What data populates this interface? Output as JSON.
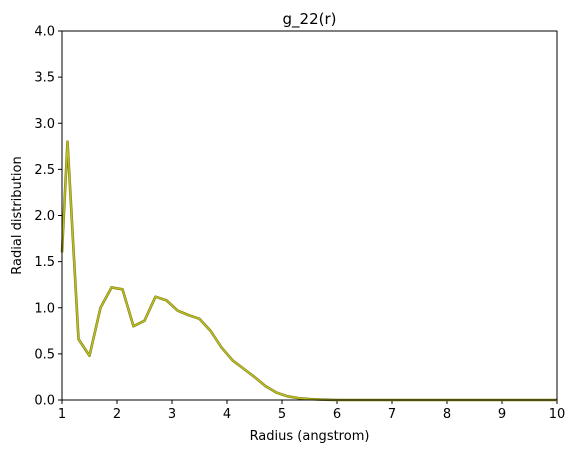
{
  "chart_data": {
    "type": "line",
    "title": "g_22(r)",
    "xlabel": "Radius (angstrom)",
    "ylabel": "Radial distribution",
    "xlim": [
      1,
      10
    ],
    "ylim": [
      0,
      4
    ],
    "xticks": [
      "1",
      "2",
      "3",
      "4",
      "5",
      "6",
      "7",
      "8",
      "9",
      "10"
    ],
    "yticks": [
      "0.0",
      "0.5",
      "1.0",
      "1.5",
      "2.0",
      "2.5",
      "3.0",
      "3.5",
      "4.0"
    ],
    "grid": false,
    "series": [
      {
        "color": "#bcbd22",
        "x": [
          1.0,
          1.1,
          1.3,
          1.5,
          1.7,
          1.9,
          2.1,
          2.3,
          2.5,
          2.7,
          2.9,
          3.1,
          3.3,
          3.5,
          3.7,
          3.9,
          4.1,
          4.3,
          4.5,
          4.7,
          4.9,
          5.1,
          5.3,
          5.5,
          5.7,
          6.0,
          7.0,
          8.0,
          9.0,
          10.0
        ],
        "y": [
          1.6,
          2.8,
          0.66,
          0.48,
          1.0,
          1.22,
          1.2,
          0.8,
          0.86,
          1.12,
          1.08,
          0.97,
          0.92,
          0.88,
          0.75,
          0.57,
          0.43,
          0.34,
          0.25,
          0.15,
          0.08,
          0.04,
          0.02,
          0.01,
          0.005,
          0.0,
          0.0,
          0.0,
          0.0,
          0.0
        ]
      }
    ]
  }
}
